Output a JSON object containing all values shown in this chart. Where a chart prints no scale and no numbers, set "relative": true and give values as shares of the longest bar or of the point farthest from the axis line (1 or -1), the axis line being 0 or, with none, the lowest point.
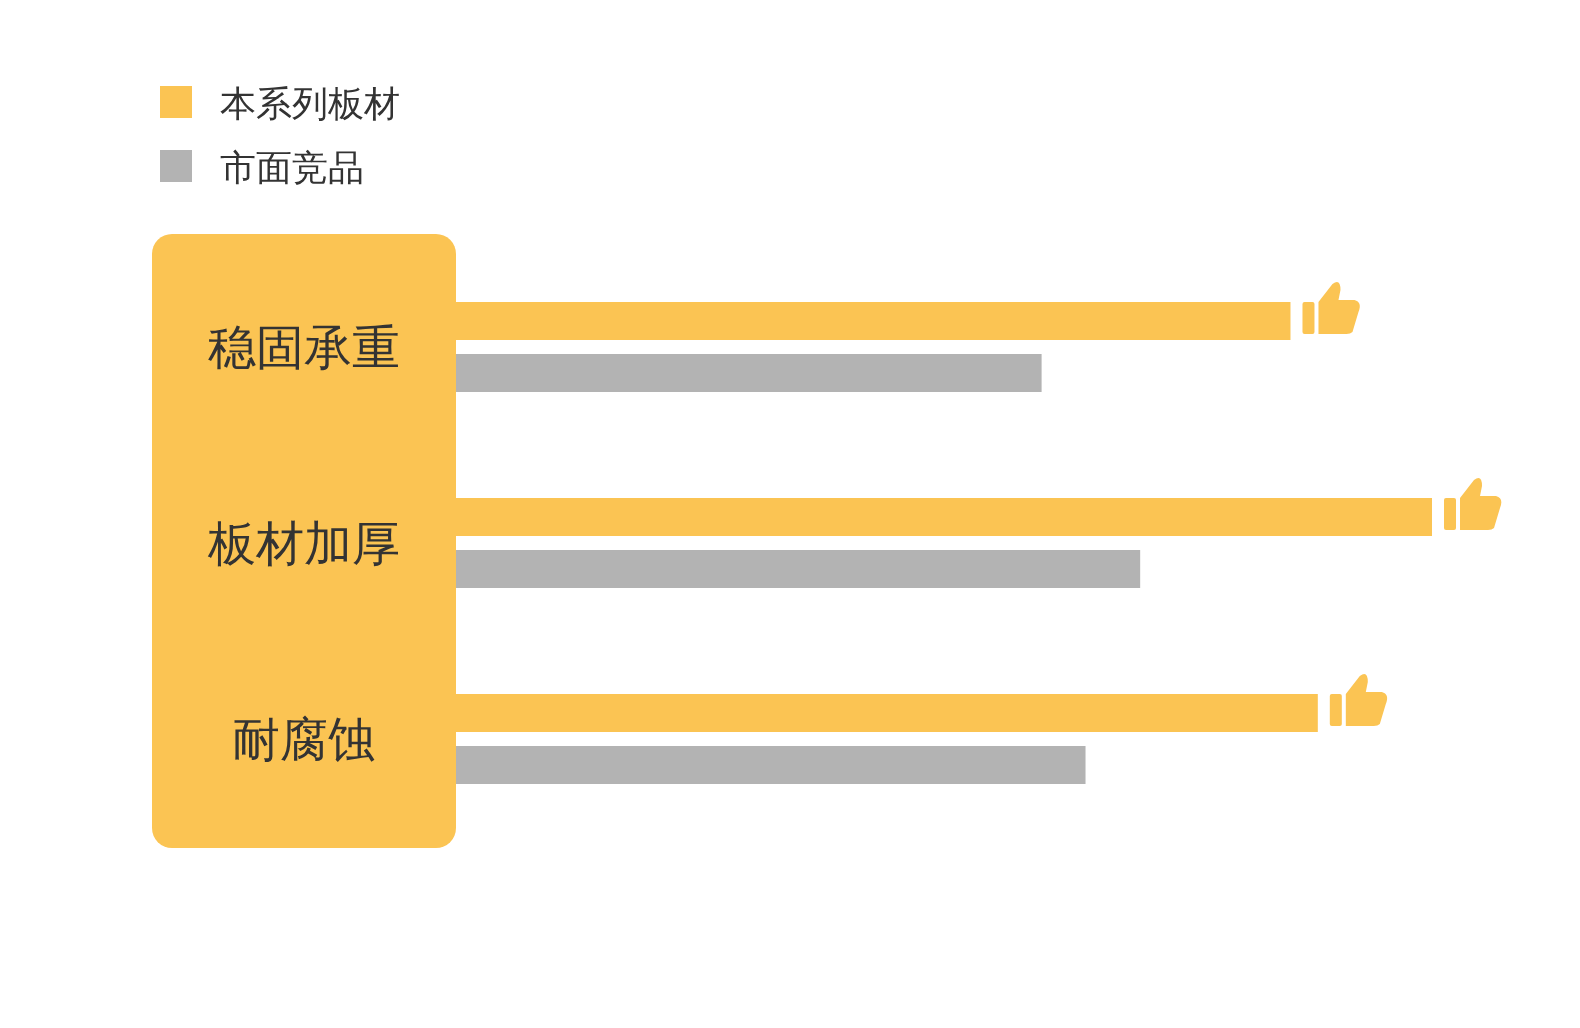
{
  "chart_data": {
    "type": "bar",
    "orientation": "horizontal",
    "relative": true,
    "legend": "top left",
    "categories": [
      "稳固承重",
      "板材加厚",
      "耐腐蚀"
    ],
    "series": [
      {
        "name": "本系列板材",
        "color": "#fbc453",
        "values": [
          0.855,
          1,
          0.883
        ]
      },
      {
        "name": "市面竞品",
        "color": "#b3b3b3",
        "values": [
          0.6,
          0.701,
          0.645
        ]
      }
    ]
  }
}
